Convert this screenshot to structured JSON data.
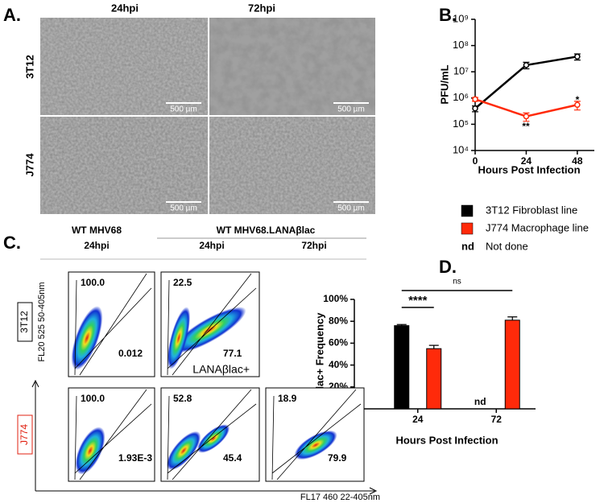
{
  "panel_a": {
    "label": "A.",
    "columns": [
      "24hpi",
      "72hpi"
    ],
    "rows": [
      "3T12",
      "J774"
    ],
    "scale_bar": "500 µm"
  },
  "chart_data": [
    {
      "type": "line",
      "label": "B.",
      "x": [
        0,
        24,
        48
      ],
      "xlim": [
        0,
        56
      ],
      "xticks": [
        0,
        24,
        48
      ],
      "ylim": [
        10000,
        1000000000
      ],
      "yticks": [
        {
          "value": 10000,
          "label": "10⁴"
        },
        {
          "value": 100000,
          "label": "10⁵"
        },
        {
          "value": 1000000,
          "label": "10⁶"
        },
        {
          "value": 10000000,
          "label": "10⁷"
        },
        {
          "value": 100000000,
          "label": "10⁸"
        },
        {
          "value": 1000000000,
          "label": "10⁹"
        }
      ],
      "log_y": true,
      "ylabel": "PFU/mL",
      "xlabel": "Hours Post Infection",
      "series": [
        {
          "name": "3T12 Fibroblast line",
          "color": "#000000",
          "values": [
            400000,
            18000000,
            38000000
          ],
          "errors": [
            100000,
            5000000,
            10000000
          ]
        },
        {
          "name": "J774 Macrophage line",
          "color": "#ff2a0a",
          "values": [
            900000,
            200000,
            550000
          ],
          "errors": [
            150000,
            70000,
            200000
          ]
        }
      ],
      "annotations": [
        "**",
        "*"
      ]
    },
    {
      "type": "bar",
      "label": "D.",
      "categories": [
        "24",
        "72"
      ],
      "series": [
        {
          "color": "#000000",
          "values": [
            76,
            null
          ],
          "errors": [
            1,
            null
          ]
        },
        {
          "color": "#ff2a0a",
          "values": [
            55,
            81
          ],
          "errors": [
            3,
            3
          ]
        }
      ],
      "ylim": [
        0,
        100
      ],
      "yticks": [
        {
          "value": 0,
          "label": "0%"
        },
        {
          "value": 20,
          "label": "20%"
        },
        {
          "value": 40,
          "label": "40%"
        },
        {
          "value": 60,
          "label": "60%"
        },
        {
          "value": 80,
          "label": "80%"
        },
        {
          "value": 100,
          "label": "100%"
        }
      ],
      "ylabel": "βlac+ Frequency",
      "xlabel": "Hours Post Infection",
      "annotations": [
        "****",
        "ns",
        "nd"
      ]
    }
  ],
  "legend_extra": {
    "symbol": "nd",
    "text": "Not done"
  },
  "panel_c": {
    "label": "C.",
    "groups": [
      "WT MHV68",
      "WT MHV68.LANAβlac"
    ],
    "times": [
      "24hpi",
      "24hpi",
      "72hpi"
    ],
    "rows": [
      "3T12",
      "J774"
    ],
    "y_axis": "FL20 525 50-405nm",
    "x_axis": "FL17 460 22-405nm",
    "plots": [
      {
        "upper": "100.0",
        "lower": "0.012"
      },
      {
        "upper": "22.5",
        "lower": "77.1",
        "gate": "LANAβlac+"
      },
      {
        "upper": "100.0",
        "lower": "1.93E-3"
      },
      {
        "upper": "52.8",
        "lower": "45.4"
      },
      {
        "upper": "18.9",
        "lower": "79.9"
      }
    ]
  }
}
